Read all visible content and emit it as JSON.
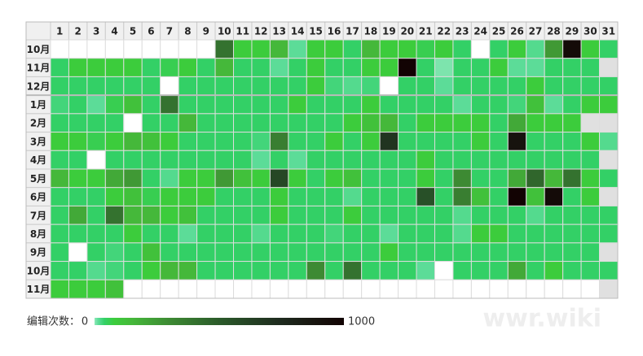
{
  "chart_data": {
    "type": "heatmap",
    "columns": [
      1,
      2,
      3,
      4,
      5,
      6,
      7,
      8,
      9,
      10,
      11,
      12,
      13,
      14,
      15,
      16,
      17,
      18,
      19,
      20,
      21,
      22,
      23,
      24,
      25,
      26,
      27,
      28,
      29,
      30,
      31
    ],
    "rows": [
      {
        "label": "10月",
        "values": [
          null,
          null,
          null,
          null,
          null,
          null,
          null,
          null,
          null,
          400,
          80,
          80,
          150,
          15,
          80,
          80,
          40,
          150,
          80,
          80,
          60,
          80,
          40,
          null,
          40,
          80,
          20,
          250,
          950,
          80,
          40
        ]
      },
      {
        "label": "11月",
        "values": [
          40,
          80,
          80,
          80,
          80,
          40,
          60,
          80,
          40,
          150,
          40,
          40,
          15,
          40,
          80,
          40,
          40,
          80,
          80,
          1000,
          40,
          5,
          40,
          40,
          80,
          15,
          15,
          40,
          40,
          40
        ]
      },
      {
        "label": "12月",
        "values": [
          40,
          40,
          40,
          40,
          40,
          40,
          null,
          40,
          40,
          40,
          40,
          40,
          40,
          40,
          80,
          30,
          20,
          30,
          null,
          40,
          40,
          15,
          40,
          40,
          40,
          40,
          80,
          40,
          40,
          40,
          40
        ]
      },
      {
        "label": "1月",
        "values": [
          30,
          40,
          15,
          60,
          120,
          40,
          400,
          40,
          40,
          40,
          40,
          40,
          40,
          80,
          40,
          40,
          40,
          80,
          40,
          40,
          40,
          40,
          15,
          40,
          40,
          30,
          120,
          15,
          40,
          80,
          80
        ]
      },
      {
        "label": "2月",
        "values": [
          40,
          40,
          40,
          40,
          null,
          40,
          40,
          150,
          40,
          40,
          40,
          40,
          40,
          40,
          40,
          40,
          80,
          120,
          150,
          40,
          80,
          80,
          80,
          80,
          40,
          200,
          80,
          80,
          80
        ]
      },
      {
        "label": "3月",
        "values": [
          80,
          80,
          60,
          80,
          150,
          120,
          80,
          40,
          40,
          40,
          40,
          30,
          350,
          40,
          40,
          80,
          40,
          80,
          700,
          40,
          40,
          40,
          40,
          80,
          40,
          900,
          40,
          40,
          40,
          80,
          20
        ]
      },
      {
        "label": "4月",
        "values": [
          40,
          40,
          null,
          40,
          40,
          40,
          40,
          40,
          40,
          40,
          40,
          15,
          40,
          15,
          40,
          40,
          40,
          40,
          40,
          40,
          80,
          40,
          40,
          40,
          40,
          40,
          40,
          40,
          40,
          40
        ]
      },
      {
        "label": "5月",
        "values": [
          150,
          80,
          80,
          200,
          250,
          40,
          20,
          80,
          80,
          250,
          120,
          80,
          600,
          80,
          40,
          80,
          120,
          40,
          40,
          40,
          80,
          40,
          300,
          40,
          40,
          200,
          450,
          150,
          400,
          80,
          40
        ]
      },
      {
        "label": "6月",
        "values": [
          40,
          40,
          40,
          80,
          120,
          60,
          80,
          80,
          80,
          40,
          40,
          40,
          80,
          40,
          40,
          40,
          20,
          40,
          40,
          40,
          550,
          40,
          350,
          120,
          40,
          1000,
          120,
          950,
          40,
          80
        ]
      },
      {
        "label": "7月",
        "values": [
          40,
          200,
          40,
          400,
          150,
          150,
          80,
          120,
          40,
          40,
          40,
          40,
          80,
          40,
          40,
          40,
          80,
          40,
          40,
          40,
          40,
          40,
          20,
          40,
          40,
          40,
          20,
          40,
          40,
          40,
          40
        ]
      },
      {
        "label": "8月",
        "values": [
          40,
          40,
          40,
          40,
          80,
          40,
          40,
          15,
          40,
          40,
          40,
          20,
          40,
          40,
          40,
          30,
          40,
          40,
          15,
          40,
          40,
          40,
          20,
          80,
          80,
          40,
          40,
          40,
          40,
          40,
          40
        ]
      },
      {
        "label": "9月",
        "values": [
          40,
          null,
          40,
          30,
          40,
          120,
          40,
          40,
          40,
          40,
          40,
          40,
          40,
          40,
          40,
          40,
          40,
          40,
          80,
          40,
          40,
          40,
          40,
          40,
          40,
          40,
          40,
          40,
          40,
          40
        ]
      },
      {
        "label": "10月",
        "values": [
          40,
          40,
          20,
          30,
          40,
          80,
          150,
          150,
          40,
          40,
          40,
          40,
          40,
          40,
          300,
          40,
          400,
          40,
          40,
          40,
          15,
          null,
          40,
          40,
          40,
          200,
          40,
          80,
          40,
          40,
          40
        ]
      },
      {
        "label": "11月",
        "values": [
          80,
          80,
          80,
          120,
          null,
          null,
          null,
          null,
          null,
          null,
          null,
          null,
          null,
          null,
          null,
          null,
          null,
          null,
          null,
          null,
          null,
          null,
          null,
          null,
          null,
          null,
          null,
          null,
          null,
          null
        ]
      }
    ],
    "color_stops": [
      [
        0,
        "#8ee8b8"
      ],
      [
        15,
        "#5cdc98"
      ],
      [
        40,
        "#33d066"
      ],
      [
        80,
        "#3ccc3c"
      ],
      [
        150,
        "#45b83a"
      ],
      [
        300,
        "#3d8a33"
      ],
      [
        500,
        "#2b5a2a"
      ],
      [
        750,
        "#1e2a1e"
      ],
      [
        1000,
        "#120303"
      ]
    ],
    "empty_color": "#ffffff",
    "invalid_color": "#e0e0e0",
    "legend_label": "编辑次数：",
    "scale_min": 0,
    "scale_max": 1000,
    "watermark": "wwr.wiki"
  }
}
